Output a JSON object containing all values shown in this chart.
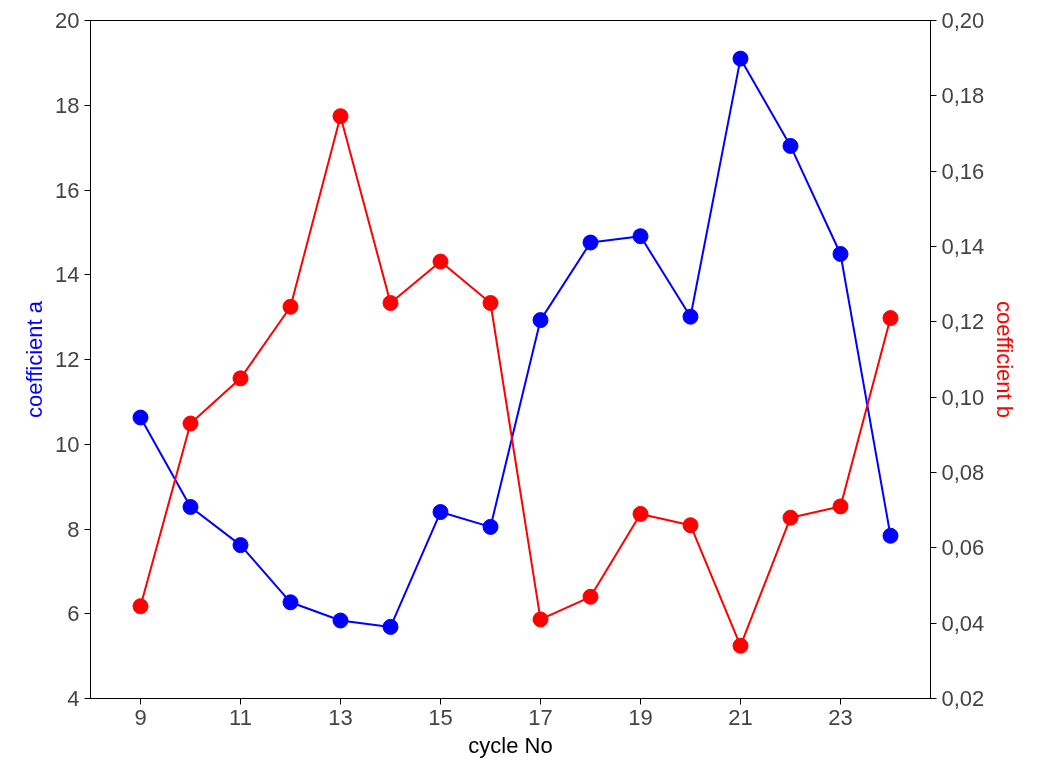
{
  "chart_data": {
    "type": "line",
    "xlabel": "cycle No",
    "ylabel": "coefficient a",
    "y2label": "coefficient b",
    "x": [
      9,
      10,
      11,
      12,
      13,
      14,
      15,
      16,
      17,
      18,
      19,
      20,
      21,
      22,
      23,
      24
    ],
    "xlim": [
      8,
      24.8
    ],
    "xticks": [
      9,
      11,
      13,
      15,
      17,
      19,
      21,
      23
    ],
    "ylim": [
      4,
      20
    ],
    "yticks": [
      4,
      6,
      8,
      10,
      12,
      14,
      16,
      18,
      20
    ],
    "y2lim": [
      0.02,
      0.2
    ],
    "y2ticks": [
      {
        "value": 0.02,
        "label": "0,02"
      },
      {
        "value": 0.04,
        "label": "0,04"
      },
      {
        "value": 0.06,
        "label": "0,06"
      },
      {
        "value": 0.08,
        "label": "0,08"
      },
      {
        "value": 0.1,
        "label": "0,10"
      },
      {
        "value": 0.12,
        "label": "0,12"
      },
      {
        "value": 0.14,
        "label": "0,14"
      },
      {
        "value": 0.16,
        "label": "0,16"
      },
      {
        "value": 0.18,
        "label": "0,18"
      },
      {
        "value": 0.2,
        "label": "0,20"
      }
    ],
    "grid": false,
    "marker": "circle",
    "line_style": "solid",
    "series": [
      {
        "color": "#0000ff",
        "values": [
          10.63,
          8.52,
          7.62,
          6.27,
          5.84,
          5.69,
          8.4,
          8.05,
          12.93,
          14.76,
          14.91,
          13.01,
          19.1,
          17.04,
          14.49,
          7.84
        ]
      },
      {
        "color": "#ff0000",
        "axis": "y2",
        "values": [
          0.0445,
          0.093,
          0.105,
          0.124,
          0.1746,
          0.125,
          0.136,
          0.125,
          0.041,
          0.047,
          0.069,
          0.066,
          0.034,
          0.068,
          0.071,
          0.121
        ]
      }
    ]
  }
}
